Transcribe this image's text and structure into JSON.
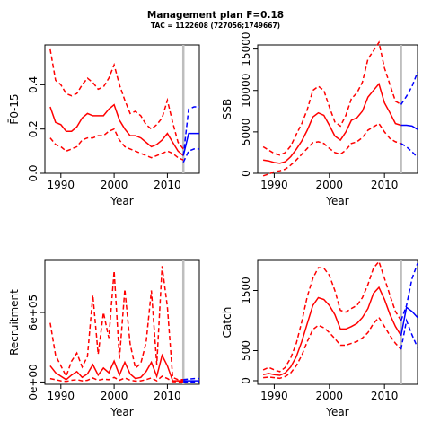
{
  "title": "Management plan F=0.18",
  "subtitle": "TAC = 1122608 (727056;1749667)",
  "colors": {
    "history": "#ff0000",
    "projection": "#0000ff",
    "divider": "#bebebe",
    "axis": "#000000"
  },
  "chart_data": [
    {
      "id": "fbar",
      "type": "line",
      "xlabel": "Year",
      "ylabel": "F̄0-15",
      "xlim": [
        1987,
        2016
      ],
      "ylim": [
        0,
        0.58
      ],
      "xticks": [
        1990,
        2000,
        2010
      ],
      "yticks": [
        0.0,
        0.2,
        0.4
      ],
      "ytick_labels": [
        "0.0",
        "0.2",
        "0.4"
      ],
      "divider_x": 2013,
      "series": [
        {
          "role": "history-median",
          "x": [
            1988,
            1989,
            1990,
            1991,
            1992,
            1993,
            1994,
            1995,
            1996,
            1997,
            1998,
            1999,
            2000,
            2001,
            2002,
            2003,
            2004,
            2005,
            2006,
            2007,
            2008,
            2009,
            2010,
            2011,
            2012,
            2013
          ],
          "y": [
            0.3,
            0.23,
            0.22,
            0.19,
            0.19,
            0.21,
            0.25,
            0.27,
            0.26,
            0.26,
            0.26,
            0.29,
            0.31,
            0.24,
            0.2,
            0.17,
            0.17,
            0.16,
            0.14,
            0.12,
            0.13,
            0.15,
            0.18,
            0.14,
            0.1,
            0.08
          ]
        },
        {
          "role": "history-upper",
          "x": [
            1988,
            1989,
            1990,
            1991,
            1992,
            1993,
            1994,
            1995,
            1996,
            1997,
            1998,
            1999,
            2000,
            2001,
            2002,
            2003,
            2004,
            2005,
            2006,
            2007,
            2008,
            2009,
            2010,
            2011,
            2012,
            2013
          ],
          "y": [
            0.56,
            0.42,
            0.4,
            0.36,
            0.35,
            0.36,
            0.4,
            0.43,
            0.41,
            0.38,
            0.39,
            0.43,
            0.49,
            0.4,
            0.33,
            0.27,
            0.28,
            0.26,
            0.22,
            0.2,
            0.22,
            0.25,
            0.33,
            0.23,
            0.14,
            0.11
          ]
        },
        {
          "role": "history-lower",
          "x": [
            1988,
            1989,
            1990,
            1991,
            1992,
            1993,
            1994,
            1995,
            1996,
            1997,
            1998,
            1999,
            2000,
            2001,
            2002,
            2003,
            2004,
            2005,
            2006,
            2007,
            2008,
            2009,
            2010,
            2011,
            2012,
            2013
          ],
          "y": [
            0.16,
            0.13,
            0.12,
            0.1,
            0.11,
            0.12,
            0.15,
            0.16,
            0.16,
            0.17,
            0.17,
            0.19,
            0.2,
            0.15,
            0.12,
            0.11,
            0.1,
            0.09,
            0.08,
            0.07,
            0.08,
            0.09,
            0.1,
            0.09,
            0.07,
            0.06
          ]
        },
        {
          "role": "projection-median",
          "x": [
            2013,
            2014,
            2015,
            2016
          ],
          "y": [
            0.08,
            0.18,
            0.18,
            0.18
          ]
        },
        {
          "role": "projection-upper",
          "x": [
            2013,
            2014,
            2015,
            2016
          ],
          "y": [
            0.08,
            0.29,
            0.3,
            0.3
          ]
        },
        {
          "role": "projection-lower",
          "x": [
            2013,
            2014,
            2015,
            2016
          ],
          "y": [
            0.05,
            0.1,
            0.11,
            0.11
          ]
        }
      ]
    },
    {
      "id": "ssb",
      "type": "line",
      "xlabel": "Year",
      "ylabel": "SSB",
      "xlim": [
        1987,
        2016
      ],
      "ylim": [
        0,
        15500
      ],
      "xticks": [
        1990,
        2000,
        2010
      ],
      "yticks": [
        0,
        5000,
        10000,
        15000
      ],
      "ytick_labels": [
        "0",
        "5000",
        "10000",
        "15000"
      ],
      "divider_x": 2013,
      "series": [
        {
          "role": "history-median",
          "x": [
            1988,
            1989,
            1990,
            1991,
            1992,
            1993,
            1994,
            1995,
            1996,
            1997,
            1998,
            1999,
            2000,
            2001,
            2002,
            2003,
            2004,
            2005,
            2006,
            2007,
            2008,
            2009,
            2010,
            2011,
            2012,
            2013
          ],
          "y": [
            1600,
            1500,
            1300,
            1200,
            1400,
            2000,
            2900,
            3900,
            5200,
            6800,
            7300,
            7000,
            5800,
            4500,
            4000,
            5000,
            6400,
            6700,
            7500,
            9200,
            10000,
            10800,
            8500,
            7300,
            6000,
            5800
          ]
        },
        {
          "role": "history-upper",
          "x": [
            1988,
            1989,
            1990,
            1991,
            1992,
            1993,
            1994,
            1995,
            1996,
            1997,
            1998,
            1999,
            2000,
            2001,
            2002,
            2003,
            2004,
            2005,
            2006,
            2007,
            2008,
            2009,
            2010,
            2011,
            2012,
            2013
          ],
          "y": [
            3200,
            2800,
            2400,
            2200,
            2500,
            3300,
            4700,
            6000,
            7700,
            10000,
            10500,
            10000,
            8000,
            6200,
            5700,
            7000,
            9000,
            9700,
            11000,
            13800,
            14800,
            15800,
            12700,
            10700,
            8700,
            8300
          ]
        },
        {
          "role": "history-lower",
          "x": [
            1988,
            1989,
            1990,
            1991,
            1992,
            1993,
            1994,
            1995,
            1996,
            1997,
            1998,
            1999,
            2000,
            2001,
            2002,
            2003,
            2004,
            2005,
            2006,
            2007,
            2008,
            2009,
            2010,
            2011,
            2012,
            2013
          ],
          "y": [
            -300,
            -100,
            200,
            300,
            500,
            1000,
            1600,
            2300,
            3000,
            3700,
            3800,
            3600,
            3000,
            2500,
            2300,
            2800,
            3600,
            3800,
            4300,
            5200,
            5600,
            6000,
            5000,
            4200,
            3800,
            3600
          ]
        },
        {
          "role": "projection-median",
          "x": [
            2013,
            2014,
            2015,
            2016
          ],
          "y": [
            5800,
            5800,
            5700,
            5300
          ]
        },
        {
          "role": "projection-upper",
          "x": [
            2013,
            2014,
            2015,
            2016
          ],
          "y": [
            8300,
            9300,
            10500,
            12200
          ]
        },
        {
          "role": "projection-lower",
          "x": [
            2013,
            2014,
            2015,
            2016
          ],
          "y": [
            3600,
            3200,
            2600,
            1900
          ]
        }
      ]
    },
    {
      "id": "recruitment",
      "type": "line",
      "xlabel": "Year",
      "ylabel": "Recruitment",
      "xlim": [
        1987,
        2016
      ],
      "ylim": [
        -20000,
        1050000
      ],
      "xticks": [
        1990,
        2000,
        2010
      ],
      "yticks": [
        0,
        600000
      ],
      "ytick_labels": [
        "0e+00",
        "6e+05"
      ],
      "divider_x": 2013,
      "series": [
        {
          "role": "history-median",
          "x": [
            1988,
            1989,
            1990,
            1991,
            1992,
            1993,
            1994,
            1995,
            1996,
            1997,
            1998,
            1999,
            2000,
            2001,
            2002,
            2003,
            2004,
            2005,
            2006,
            2007,
            2008,
            2009,
            2010,
            2011,
            2012,
            2013
          ],
          "y": [
            140000,
            80000,
            50000,
            20000,
            60000,
            90000,
            40000,
            70000,
            150000,
            60000,
            120000,
            80000,
            180000,
            60000,
            170000,
            70000,
            30000,
            40000,
            90000,
            170000,
            50000,
            230000,
            140000,
            10000,
            10000,
            10000
          ]
        },
        {
          "role": "history-upper",
          "x": [
            1988,
            1989,
            1990,
            1991,
            1992,
            1993,
            1994,
            1995,
            1996,
            1997,
            1998,
            1999,
            2000,
            2001,
            2002,
            2003,
            2004,
            2005,
            2006,
            2007,
            2008,
            2009,
            2010,
            2011,
            2012,
            2013
          ],
          "y": [
            510000,
            230000,
            140000,
            50000,
            180000,
            250000,
            130000,
            220000,
            750000,
            240000,
            600000,
            380000,
            960000,
            200000,
            800000,
            330000,
            120000,
            160000,
            340000,
            790000,
            150000,
            1000000,
            650000,
            40000,
            20000,
            20000
          ]
        },
        {
          "role": "history-lower",
          "x": [
            1988,
            1989,
            1990,
            1991,
            1992,
            1993,
            1994,
            1995,
            1996,
            1997,
            1998,
            1999,
            2000,
            2001,
            2002,
            2003,
            2004,
            2005,
            2006,
            2007,
            2008,
            2009,
            2010,
            2011,
            2012,
            2013
          ],
          "y": [
            30000,
            20000,
            10000,
            5000,
            15000,
            20000,
            10000,
            15000,
            35000,
            15000,
            25000,
            20000,
            40000,
            15000,
            35000,
            15000,
            8000,
            10000,
            20000,
            35000,
            10000,
            50000,
            30000,
            3000,
            2000,
            2000
          ]
        },
        {
          "role": "projection-median",
          "x": [
            2013,
            2014,
            2015,
            2016
          ],
          "y": [
            10000,
            10000,
            10000,
            10000
          ]
        },
        {
          "role": "projection-upper",
          "x": [
            2013,
            2014,
            2015,
            2016
          ],
          "y": [
            20000,
            25000,
            30000,
            30000
          ]
        },
        {
          "role": "projection-lower",
          "x": [
            2013,
            2014,
            2015,
            2016
          ],
          "y": [
            2000,
            2000,
            2000,
            2000
          ]
        }
      ]
    },
    {
      "id": "catch",
      "type": "line",
      "xlabel": "Year",
      "ylabel": "Catch",
      "xlim": [
        1987,
        2016
      ],
      "ylim": [
        -60,
        2000
      ],
      "xticks": [
        1990,
        2000,
        2010
      ],
      "yticks": [
        0,
        500,
        1500
      ],
      "ytick_labels": [
        "0",
        "500",
        "1500"
      ],
      "divider_x": 2013,
      "series": [
        {
          "role": "history-median",
          "x": [
            1988,
            1989,
            1990,
            1991,
            1992,
            1993,
            1994,
            1995,
            1996,
            1997,
            1998,
            1999,
            2000,
            2001,
            2002,
            2003,
            2004,
            2005,
            2006,
            2007,
            2008,
            2009,
            2010,
            2011,
            2012,
            2013
          ],
          "y": [
            100,
            120,
            100,
            90,
            130,
            230,
            400,
            650,
            950,
            1250,
            1380,
            1350,
            1250,
            1100,
            860,
            860,
            900,
            950,
            1050,
            1200,
            1450,
            1550,
            1350,
            1100,
            900,
            750
          ]
        },
        {
          "role": "history-upper",
          "x": [
            1988,
            1989,
            1990,
            1991,
            1992,
            1993,
            1994,
            1995,
            1996,
            1997,
            1998,
            1999,
            2000,
            2001,
            2002,
            2003,
            2004,
            2005,
            2006,
            2007,
            2008,
            2009,
            2010,
            2011,
            2012,
            2013
          ],
          "y": [
            180,
            220,
            180,
            150,
            220,
            380,
            620,
            980,
            1400,
            1700,
            1880,
            1870,
            1750,
            1500,
            1170,
            1140,
            1200,
            1250,
            1380,
            1600,
            1870,
            1980,
            1700,
            1420,
            1150,
            1000
          ]
        },
        {
          "role": "history-lower",
          "x": [
            1988,
            1989,
            1990,
            1991,
            1992,
            1993,
            1994,
            1995,
            1996,
            1997,
            1998,
            1999,
            2000,
            2001,
            2002,
            2003,
            2004,
            2005,
            2006,
            2007,
            2008,
            2009,
            2010,
            2011,
            2012,
            2013
          ],
          "y": [
            50,
            60,
            50,
            40,
            70,
            130,
            250,
            420,
            650,
            850,
            920,
            880,
            800,
            700,
            590,
            590,
            620,
            650,
            710,
            800,
            950,
            1050,
            900,
            750,
            620,
            520
          ]
        },
        {
          "role": "projection-median",
          "x": [
            2013,
            2014,
            2015,
            2016
          ],
          "y": [
            750,
            1220,
            1150,
            1050
          ]
        },
        {
          "role": "projection-upper",
          "x": [
            2013,
            2014,
            2015,
            2016
          ],
          "y": [
            1000,
            1250,
            1700,
            1950
          ]
        },
        {
          "role": "projection-lower",
          "x": [
            2013,
            2014,
            2015,
            2016
          ],
          "y": [
            520,
            1000,
            760,
            550
          ]
        }
      ]
    }
  ]
}
